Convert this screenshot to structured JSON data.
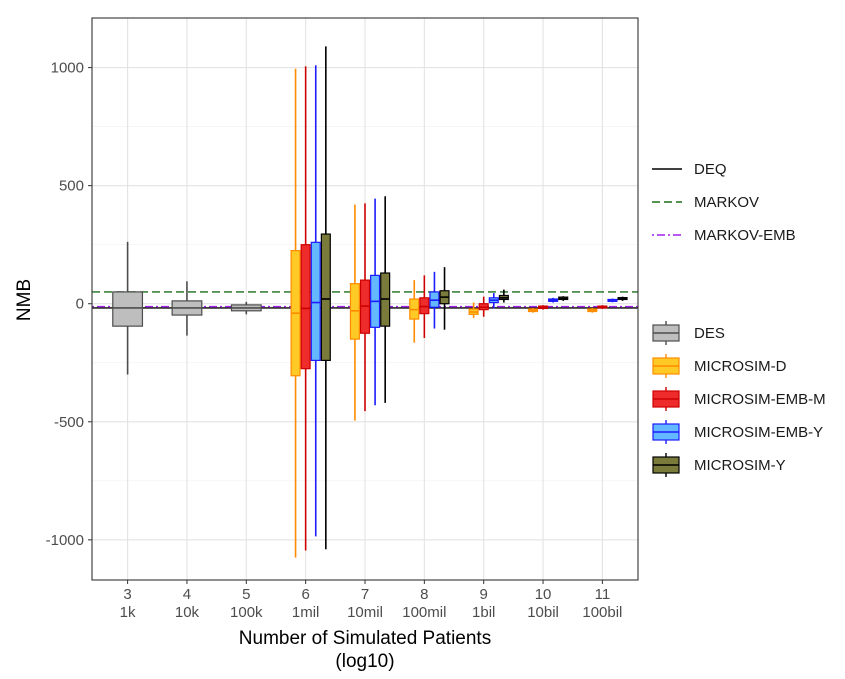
{
  "chart_data": {
    "type": "box",
    "xlabel": "Number of Simulated Patients",
    "xlabel_line2": "(log10)",
    "ylabel": "NMB",
    "ylim": [
      -1170,
      1210
    ],
    "grid": true,
    "legend_position": "right",
    "y_ticks": [
      {
        "value": 1000,
        "label": "1000"
      },
      {
        "value": 500,
        "label": "500"
      },
      {
        "value": 0,
        "label": "0"
      },
      {
        "value": -500,
        "label": "-500"
      },
      {
        "value": -1000,
        "label": "-1000"
      }
    ],
    "categories": [
      {
        "x": 3,
        "label": "3",
        "sublabel": "1k"
      },
      {
        "x": 4,
        "label": "4",
        "sublabel": "10k"
      },
      {
        "x": 5,
        "label": "5",
        "sublabel": "100k"
      },
      {
        "x": 6,
        "label": "6",
        "sublabel": "1mil"
      },
      {
        "x": 7,
        "label": "7",
        "sublabel": "10mil"
      },
      {
        "x": 8,
        "label": "8",
        "sublabel": "100mil"
      },
      {
        "x": 9,
        "label": "9",
        "sublabel": "1bil"
      },
      {
        "x": 10,
        "label": "10",
        "sublabel": "10bil"
      },
      {
        "x": 11,
        "label": "11",
        "sublabel": "100bil"
      }
    ],
    "reference_lines": [
      {
        "name": "DEQ",
        "value": -18,
        "color": "#000000",
        "style": "solid"
      },
      {
        "name": "MARKOV",
        "value": 50,
        "color": "#1a6e1a",
        "style": "dashed"
      },
      {
        "name": "MARKOV-EMB",
        "value": -12,
        "color": "#a020f0",
        "style": "dotdash"
      }
    ],
    "series": [
      {
        "name": "DES",
        "fill": "#bebebe",
        "stroke": "#4d4d4d",
        "boxes": [
          {
            "x": 3,
            "whisker_low": -300,
            "q1": -95,
            "median": -18,
            "q3": 50,
            "whisker_high": 262
          },
          {
            "x": 4,
            "whisker_low": -135,
            "q1": -48,
            "median": -18,
            "q3": 12,
            "whisker_high": 95
          },
          {
            "x": 5,
            "whisker_low": -45,
            "q1": -30,
            "median": -18,
            "q3": -5,
            "whisker_high": 8
          }
        ]
      },
      {
        "name": "MICROSIM-D",
        "fill": "#ffc926",
        "stroke": "#ff8c00",
        "boxes": [
          {
            "x": 6,
            "whisker_low": -1075,
            "q1": -305,
            "median": -40,
            "q3": 225,
            "whisker_high": 995
          },
          {
            "x": 7,
            "whisker_low": -495,
            "q1": -150,
            "median": -30,
            "q3": 85,
            "whisker_high": 420
          },
          {
            "x": 8,
            "whisker_low": -165,
            "q1": -65,
            "median": -25,
            "q3": 20,
            "whisker_high": 100
          },
          {
            "x": 9,
            "whisker_low": -60,
            "q1": -45,
            "median": -35,
            "q3": -22,
            "whisker_high": 5
          },
          {
            "x": 10,
            "whisker_low": -38,
            "q1": -33,
            "median": -28,
            "q3": -22,
            "whisker_high": -18
          },
          {
            "x": 11,
            "whisker_low": -38,
            "q1": -33,
            "median": -28,
            "q3": -22,
            "whisker_high": -18
          }
        ]
      },
      {
        "name": "MICROSIM-EMB-M",
        "fill": "#ee2c2c",
        "stroke": "#cd0000",
        "boxes": [
          {
            "x": 6,
            "whisker_low": -1045,
            "q1": -275,
            "median": -20,
            "q3": 250,
            "whisker_high": 1005
          },
          {
            "x": 7,
            "whisker_low": -455,
            "q1": -125,
            "median": -10,
            "q3": 100,
            "whisker_high": 425
          },
          {
            "x": 8,
            "whisker_low": -145,
            "q1": -42,
            "median": -12,
            "q3": 25,
            "whisker_high": 120
          },
          {
            "x": 9,
            "whisker_low": -55,
            "q1": -25,
            "median": -15,
            "q3": 0,
            "whisker_high": 30
          },
          {
            "x": 10,
            "whisker_low": -25,
            "q1": -20,
            "median": -15,
            "q3": -10,
            "whisker_high": -6
          },
          {
            "x": 11,
            "whisker_low": -22,
            "q1": -18,
            "median": -15,
            "q3": -10,
            "whisker_high": -6
          }
        ]
      },
      {
        "name": "MICROSIM-EMB-Y",
        "fill": "#63b8ff",
        "stroke": "#1c1cff",
        "boxes": [
          {
            "x": 6,
            "whisker_low": -985,
            "q1": -240,
            "median": 5,
            "q3": 260,
            "whisker_high": 1010
          },
          {
            "x": 7,
            "whisker_low": -430,
            "q1": -100,
            "median": 10,
            "q3": 120,
            "whisker_high": 445
          },
          {
            "x": 8,
            "whisker_low": -105,
            "q1": -15,
            "median": 15,
            "q3": 50,
            "whisker_high": 135
          },
          {
            "x": 9,
            "whisker_low": -20,
            "q1": 5,
            "median": 15,
            "q3": 25,
            "whisker_high": 45
          },
          {
            "x": 10,
            "whisker_low": 5,
            "q1": 10,
            "median": 15,
            "q3": 20,
            "whisker_high": 25
          },
          {
            "x": 11,
            "whisker_low": 6,
            "q1": 10,
            "median": 14,
            "q3": 18,
            "whisker_high": 22
          }
        ]
      },
      {
        "name": "MICROSIM-Y",
        "fill": "#7a7a3a",
        "stroke": "#000000",
        "boxes": [
          {
            "x": 6,
            "whisker_low": -1040,
            "q1": -240,
            "median": 20,
            "q3": 295,
            "whisker_high": 1090
          },
          {
            "x": 7,
            "whisker_low": -420,
            "q1": -95,
            "median": 20,
            "q3": 130,
            "whisker_high": 455
          },
          {
            "x": 8,
            "whisker_low": -110,
            "q1": 0,
            "median": 28,
            "q3": 55,
            "whisker_high": 155
          },
          {
            "x": 9,
            "whisker_low": 5,
            "q1": 18,
            "median": 25,
            "q3": 35,
            "whisker_high": 60
          },
          {
            "x": 10,
            "whisker_low": 12,
            "q1": 18,
            "median": 22,
            "q3": 28,
            "whisker_high": 32
          },
          {
            "x": 11,
            "whisker_low": 12,
            "q1": 18,
            "median": 22,
            "q3": 26,
            "whisker_high": 30
          }
        ]
      }
    ]
  }
}
